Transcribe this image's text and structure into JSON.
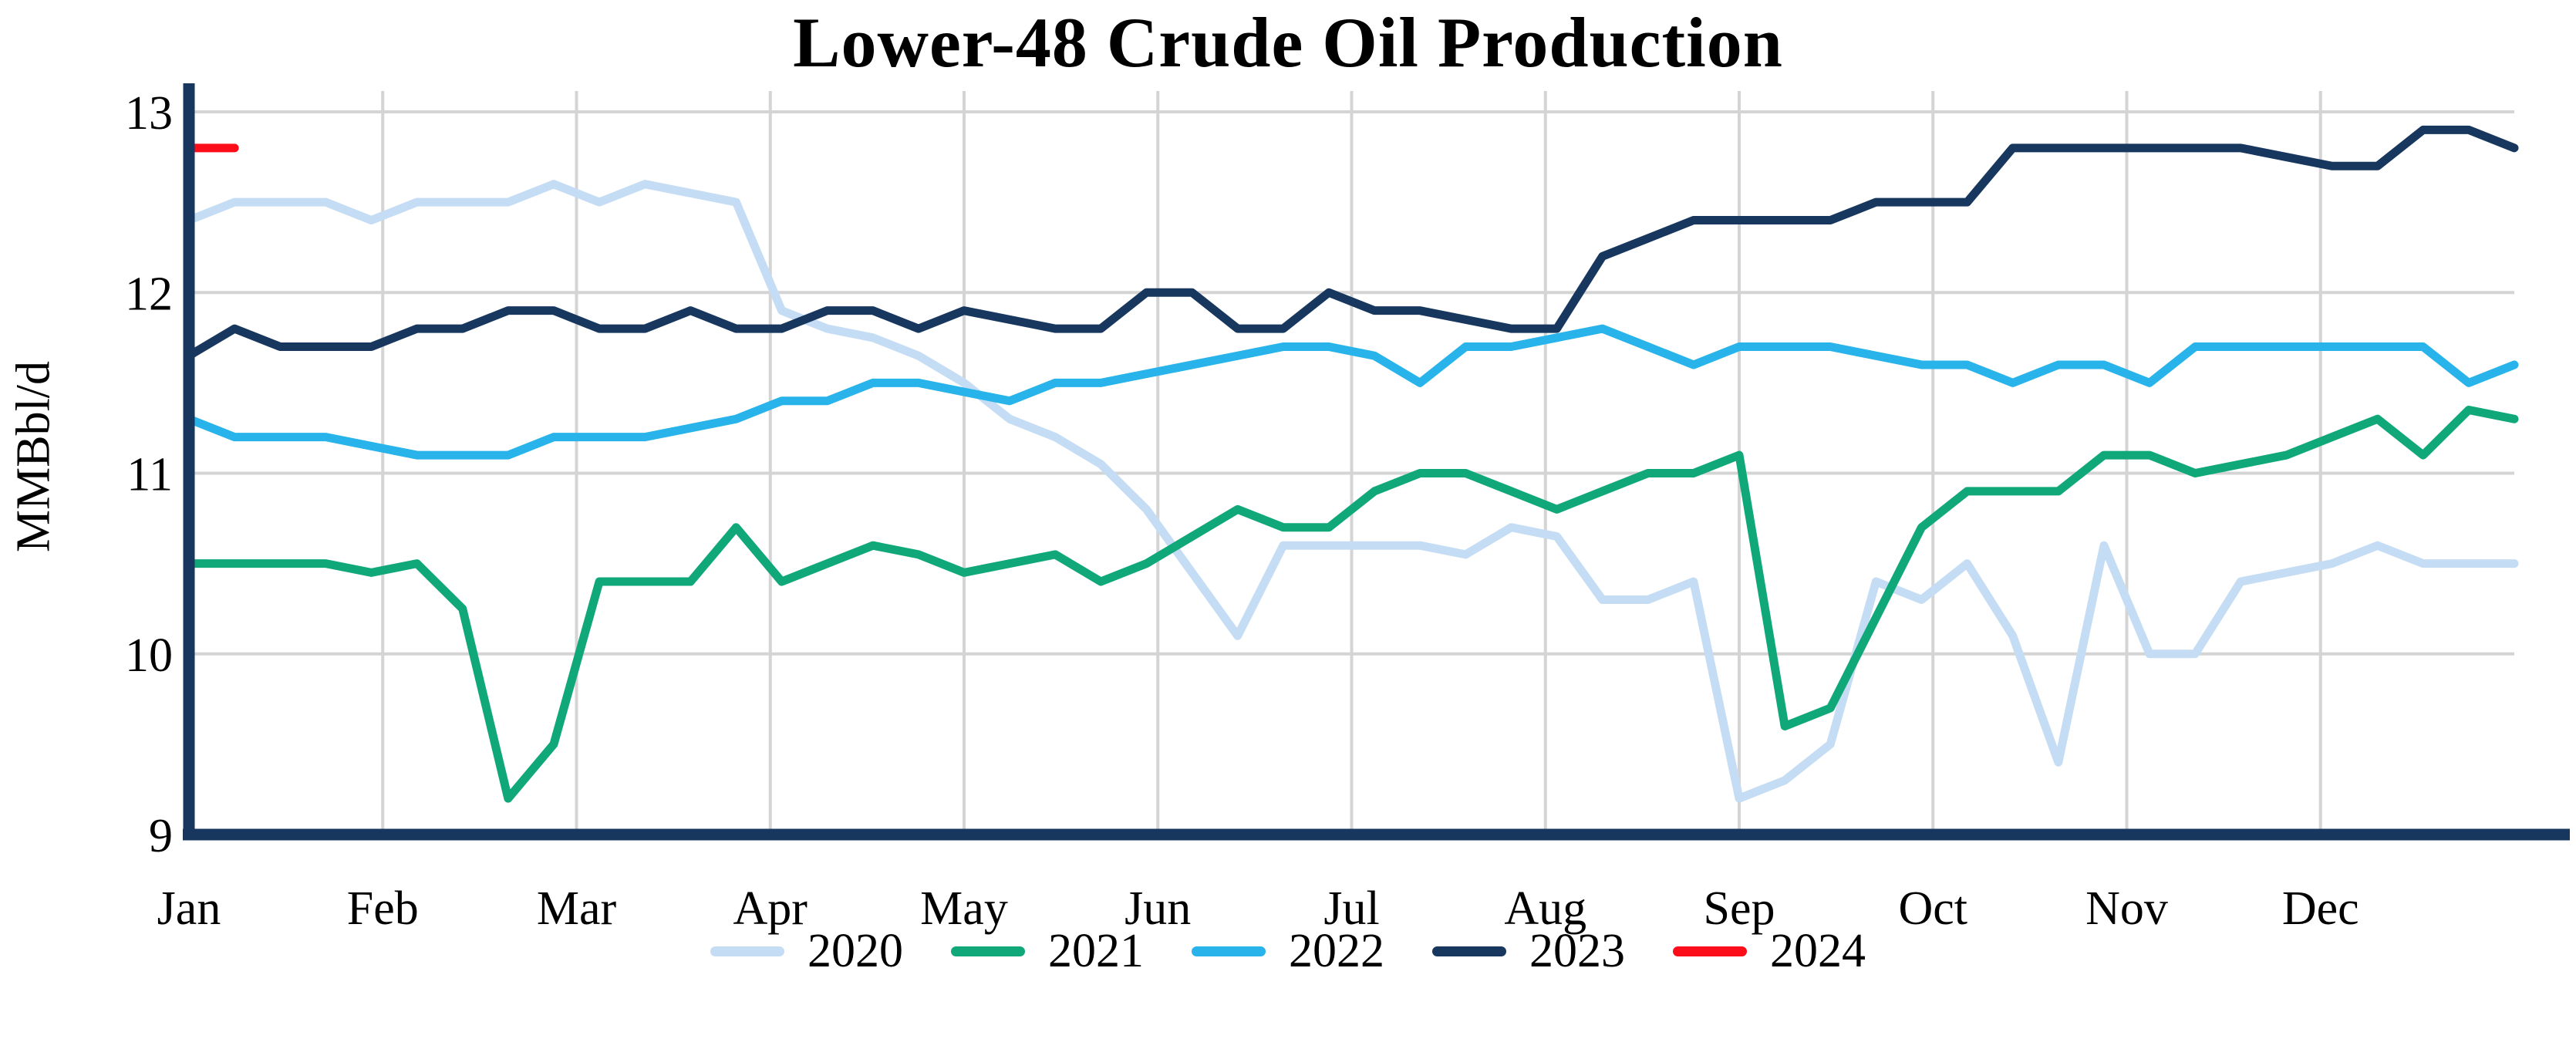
{
  "chart_data": {
    "type": "line",
    "title": "Lower-48 Crude Oil Production",
    "ylabel": "MMBbl/d",
    "x_axis": {
      "categories": [
        "Jan",
        "Feb",
        "Mar",
        "Apr",
        "May",
        "Jun",
        "Jul",
        "Aug",
        "Sep",
        "Oct",
        "Nov",
        "Dec"
      ]
    },
    "y_axis": {
      "min": 9,
      "max": 13,
      "ticks": [
        9,
        10,
        11,
        12,
        13
      ]
    },
    "grid": true,
    "legend_position": "bottom",
    "colors": {
      "background": "#ffffff",
      "grid": "#d4d4d4",
      "axis": "#17375e",
      "text": "#000000"
    },
    "series": [
      {
        "name": "2020",
        "color": "#c5ddf4",
        "values": [
          12.4,
          12.5,
          12.5,
          12.5,
          12.4,
          12.5,
          12.5,
          12.5,
          12.6,
          12.5,
          12.6,
          12.55,
          12.5,
          11.9,
          11.8,
          11.75,
          11.65,
          11.5,
          11.3,
          11.2,
          11.05,
          10.8,
          10.45,
          10.1,
          10.6,
          10.6,
          10.6,
          10.6,
          10.55,
          10.7,
          10.65,
          10.3,
          10.3,
          10.4,
          9.2,
          9.3,
          9.5,
          10.4,
          10.3,
          10.5,
          10.1,
          9.4,
          10.6,
          10.0,
          10.0,
          10.4,
          10.45,
          10.5,
          10.6,
          10.5,
          10.5,
          10.5
        ]
      },
      {
        "name": "2021",
        "color": "#10a878",
        "values": [
          10.5,
          10.5,
          10.5,
          10.5,
          10.45,
          10.5,
          10.25,
          9.2,
          9.5,
          10.4,
          10.4,
          10.4,
          10.7,
          10.4,
          10.5,
          10.6,
          10.55,
          10.45,
          10.5,
          10.55,
          10.4,
          10.5,
          10.65,
          10.8,
          10.7,
          10.7,
          10.9,
          11.0,
          11.0,
          10.9,
          10.8,
          10.9,
          11.0,
          11.0,
          11.1,
          9.6,
          9.7,
          10.2,
          10.7,
          10.9,
          10.9,
          10.9,
          11.1,
          11.1,
          11.0,
          11.05,
          11.1,
          11.2,
          11.3,
          11.1,
          11.35,
          11.3
        ]
      },
      {
        "name": "2022",
        "color": "#28b4ea",
        "values": [
          11.3,
          11.2,
          11.2,
          11.2,
          11.15,
          11.1,
          11.1,
          11.1,
          11.2,
          11.2,
          11.2,
          11.25,
          11.3,
          11.4,
          11.4,
          11.5,
          11.5,
          11.45,
          11.4,
          11.5,
          11.5,
          11.55,
          11.6,
          11.65,
          11.7,
          11.7,
          11.65,
          11.5,
          11.7,
          11.7,
          11.75,
          11.8,
          11.7,
          11.6,
          11.7,
          11.7,
          11.7,
          11.65,
          11.6,
          11.6,
          11.5,
          11.6,
          11.6,
          11.5,
          11.7,
          11.7,
          11.7,
          11.7,
          11.7,
          11.7,
          11.5,
          11.6
        ]
      },
      {
        "name": "2023",
        "color": "#17375e",
        "values": [
          11.65,
          11.8,
          11.7,
          11.7,
          11.7,
          11.8,
          11.8,
          11.9,
          11.9,
          11.8,
          11.8,
          11.9,
          11.8,
          11.8,
          11.9,
          11.9,
          11.8,
          11.9,
          11.85,
          11.8,
          11.8,
          12.0,
          12.0,
          11.8,
          11.8,
          12.0,
          11.9,
          11.9,
          11.85,
          11.8,
          11.8,
          12.2,
          12.3,
          12.4,
          12.4,
          12.4,
          12.4,
          12.5,
          12.5,
          12.5,
          12.8,
          12.8,
          12.8,
          12.8,
          12.8,
          12.8,
          12.75,
          12.7,
          12.7,
          12.9,
          12.9,
          12.8
        ]
      },
      {
        "name": "2024",
        "color": "#fb0d1a",
        "values": [
          12.8,
          12.8
        ]
      }
    ]
  }
}
